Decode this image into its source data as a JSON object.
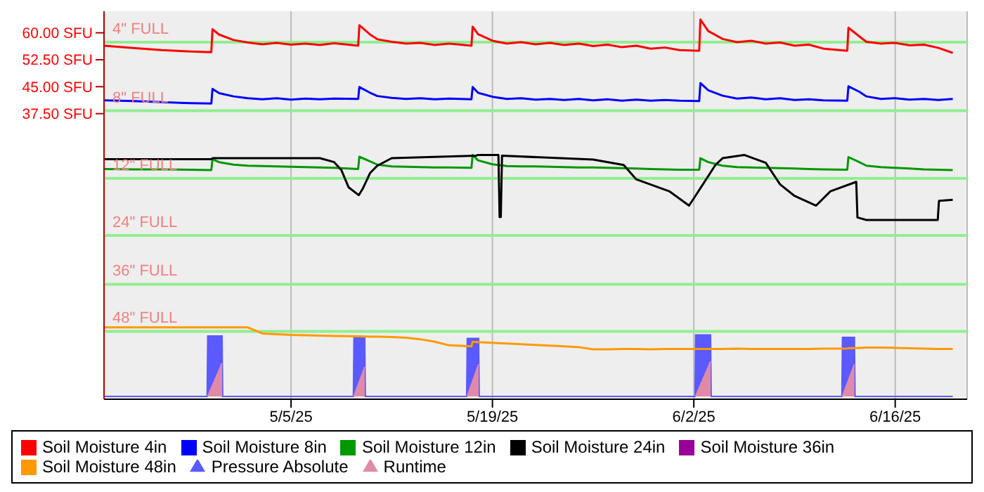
{
  "chart_data": {
    "type": "line",
    "x": [
      "--04-22",
      "--04-24",
      "--04-26",
      "--04-28",
      "--04-29T11:00",
      "--04-29T13:00",
      "--04-30",
      "--05-01",
      "--05-02",
      "--05-03",
      "--05-04",
      "--05-05",
      "--05-06",
      "--05-07",
      "--05-08",
      "--05-09T16:00",
      "--05-09T18:00",
      "--05-10T12:00",
      "--05-11",
      "--05-12",
      "--05-13",
      "--05-14",
      "--05-15",
      "--05-16",
      "--05-17T13:00",
      "--05-17T15:00",
      "--05-18",
      "--05-19",
      "--05-20",
      "--05-21",
      "--05-22",
      "--05-23",
      "--05-24",
      "--05-25",
      "--05-26",
      "--05-27",
      "--05-28",
      "--05-29",
      "--05-30",
      "--05-31",
      "--06-01",
      "--06-02T09:00",
      "--06-02T11:00",
      "--06-03",
      "--06-04",
      "--06-05",
      "--06-06",
      "--06-07",
      "--06-08",
      "--06-09",
      "--06-10",
      "--06-11",
      "--06-12T16:00",
      "--06-12T18:00",
      "--06-13T12:00",
      "--06-14",
      "--06-15",
      "--06-16",
      "--06-17",
      "--06-18",
      "--06-19",
      "--06-20"
    ],
    "series": [
      {
        "name": "Soil Moisture 4in",
        "color": "#ff0000",
        "values": [
          56.4,
          55.8,
          55.2,
          54.8,
          54.6,
          61.0,
          59.5,
          58.0,
          57.3,
          56.8,
          57.2,
          56.7,
          57.0,
          56.6,
          57.1,
          56.4,
          62.1,
          59.5,
          58.2,
          57.5,
          57.0,
          57.2,
          56.6,
          57.0,
          56.4,
          61.7,
          59.6,
          57.8,
          57.0,
          57.4,
          56.8,
          57.2,
          56.6,
          57.0,
          56.3,
          56.7,
          56.0,
          56.4,
          55.6,
          55.9,
          55.2,
          55.0,
          63.7,
          60.5,
          58.3,
          57.4,
          57.8,
          57.0,
          57.3,
          56.4,
          56.7,
          55.6,
          55.0,
          61.4,
          59.0,
          57.5,
          57.0,
          57.2,
          56.5,
          56.7,
          55.8,
          54.4
        ]
      },
      {
        "name": "Soil Moisture 8in",
        "color": "#0000ff",
        "values": [
          41.2,
          41.0,
          40.7,
          40.4,
          40.3,
          44.4,
          43.2,
          42.3,
          41.8,
          41.5,
          41.8,
          41.4,
          41.7,
          41.5,
          41.7,
          41.6,
          44.9,
          43.3,
          42.4,
          41.9,
          41.6,
          41.8,
          41.5,
          41.7,
          41.5,
          44.9,
          43.3,
          42.2,
          41.6,
          41.8,
          41.4,
          41.6,
          41.3,
          41.6,
          41.2,
          41.5,
          41.1,
          41.4,
          41.1,
          41.3,
          41.1,
          41.0,
          46.0,
          44.0,
          42.5,
          41.7,
          42.0,
          41.5,
          41.8,
          41.3,
          41.5,
          41.2,
          41.1,
          45.1,
          43.6,
          42.3,
          41.6,
          41.8,
          41.4,
          41.6,
          41.3,
          41.6
        ]
      },
      {
        "name": "Soil Moisture 12in",
        "color": "#009900",
        "values": [
          22.1,
          22.0,
          22.0,
          21.9,
          21.8,
          24.8,
          24.0,
          23.3,
          23.0,
          22.9,
          22.8,
          22.7,
          22.6,
          22.5,
          22.4,
          22.1,
          25.5,
          24.2,
          23.3,
          22.8,
          22.7,
          22.6,
          22.5,
          22.5,
          22.4,
          26.0,
          24.5,
          23.4,
          22.9,
          22.8,
          22.8,
          22.7,
          22.6,
          22.5,
          22.5,
          22.4,
          22.3,
          22.2,
          22.1,
          22.0,
          21.9,
          21.9,
          25.1,
          24.0,
          23.0,
          22.6,
          22.5,
          22.4,
          22.3,
          22.2,
          22.1,
          22.0,
          21.9,
          25.4,
          24.0,
          23.0,
          22.6,
          22.4,
          22.2,
          22.0,
          21.9,
          21.8
        ]
      },
      {
        "name": "Soil Moisture 24in",
        "color": "#000000",
        "x": [
          "--04-22",
          "--04-29T11:00",
          "--04-29T13:00",
          "--05-07",
          "--05-08",
          "--05-08T12:00",
          "--05-09",
          "--05-09T17:00",
          "--05-10",
          "--05-10T12:00",
          "--05-11",
          "--05-12",
          "--05-17T21:00",
          "--05-18",
          "--05-19T10:00",
          "--05-19T12:00",
          "--05-19T14:00",
          "--05-19T16:00",
          "--05-26",
          "--05-28T03:00",
          "--05-29",
          "--05-31T07:00",
          "--06-01T16:00",
          "--06-02",
          "--06-03T12:00",
          "--06-04",
          "--06-05T12:00",
          "--06-07",
          "--06-08",
          "--06-09",
          "--06-10T12:00",
          "--06-11T12:00",
          "--06-13T07:00",
          "--06-13T09:00",
          "--06-14",
          "--06-18T23:00",
          "--06-19T01:00",
          "--06-20"
        ],
        "values": [
          24.8,
          24.8,
          25.1,
          25.1,
          24.0,
          21.8,
          17.0,
          14.8,
          16.7,
          21.0,
          23.0,
          25.1,
          25.8,
          26.0,
          26.0,
          8.7,
          8.7,
          25.8,
          24.7,
          23.2,
          19.2,
          15.9,
          11.9,
          13.9,
          23.2,
          25.1,
          26.0,
          23.8,
          17.8,
          14.6,
          11.9,
          15.9,
          18.5,
          8.6,
          7.9,
          7.9,
          13.2,
          13.5
        ]
      },
      {
        "name": "Soil Moisture 36in",
        "color": "#990099",
        "values": [
          null,
          null,
          null,
          null,
          null,
          null,
          null,
          null,
          null,
          null,
          null,
          null,
          null,
          null,
          null,
          null,
          null,
          null,
          null,
          null,
          null,
          null,
          null,
          null,
          null,
          null,
          null,
          null,
          null,
          null,
          null,
          null,
          null,
          null,
          null,
          null,
          null,
          null,
          null,
          null,
          null,
          null,
          null,
          null,
          null,
          null,
          null,
          null,
          null,
          null,
          null,
          null,
          null,
          null,
          null,
          null,
          null,
          null,
          null,
          null,
          null,
          null
        ]
      },
      {
        "name": "Soil Moisture 48in",
        "color": "#ff9900",
        "values": [
          -22.0,
          -22.0,
          -22.0,
          -22.0,
          -22.0,
          -22.0,
          -22.0,
          -22.0,
          -22.0,
          -23.7,
          -23.9,
          -24.1,
          -24.2,
          -24.3,
          -24.4,
          -24.5,
          -24.5,
          -24.6,
          -24.6,
          -24.7,
          -24.9,
          -25.3,
          -26.0,
          -27.0,
          -27.3,
          -26.0,
          -26.1,
          -26.3,
          -26.5,
          -26.7,
          -26.9,
          -27.1,
          -27.3,
          -27.5,
          -28.1,
          -28.1,
          -28.0,
          -28.0,
          -28.1,
          -28.0,
          -28.0,
          -28.0,
          -28.0,
          -28.0,
          -28.0,
          -27.9,
          -28.0,
          -28.0,
          -28.0,
          -28.0,
          -28.0,
          -27.9,
          -27.9,
          -27.8,
          -27.7,
          -27.6,
          -27.6,
          -27.7,
          -27.8,
          -27.9,
          -28.0,
          -28.0
        ]
      },
      {
        "name": "Pressure Absolute",
        "type": "area",
        "color": "#5a5aff",
        "x": [
          "--04-22",
          "--04-29T04:00",
          "--04-29T05:00",
          "--04-30T05:00",
          "--04-30T06:00",
          "--05-09T08:00",
          "--05-09T09:00",
          "--05-10T03:00",
          "--05-10T04:00",
          "--05-17T05:00",
          "--05-17T06:00",
          "--05-18T01:00",
          "--05-18T02:00",
          "--06-02T02:00",
          "--06-02T03:00",
          "--06-03T04:00",
          "--06-03T05:00",
          "--06-12T07:00",
          "--06-12T08:00",
          "--06-13T04:00",
          "--06-13T05:00",
          "--06-20"
        ],
        "values": [
          -41.2,
          -41.2,
          -24.4,
          -24.4,
          -41.2,
          -41.2,
          -24.8,
          -24.8,
          -41.2,
          -41.2,
          -25.1,
          -25.1,
          -41.2,
          -41.2,
          -24.1,
          -24.1,
          -41.2,
          -41.2,
          -24.8,
          -24.8,
          -41.2,
          -41.2
        ]
      },
      {
        "name": "Runtime",
        "type": "area",
        "color": "#e08aa8",
        "x": [
          "--04-29T05:00",
          "--04-30T05:00",
          "--04-30T06:00",
          "--05-09T09:00",
          "--05-10T03:00",
          "--05-10T04:00",
          "--05-17T06:00",
          "--05-18T01:00",
          "--05-18T02:00",
          "--06-02T03:00",
          "--06-03T04:00",
          "--06-03T05:00",
          "--06-12T08:00",
          "--06-13T04:00"
        ],
        "values": [
          -41.2,
          -32.0,
          null,
          -41.2,
          -33.0,
          null,
          -41.2,
          -32.3,
          null,
          -41.2,
          -31.5,
          null,
          -41.2,
          -32.3
        ]
      }
    ],
    "xlim": [
      "--04-22",
      "--06-21"
    ],
    "xticks": [
      {
        "value": "--05-05",
        "label": "5/5/25"
      },
      {
        "value": "--05-19",
        "label": "5/19/25"
      },
      {
        "value": "--06-02",
        "label": "6/2/25"
      },
      {
        "value": "--06-16",
        "label": "6/16/25"
      }
    ],
    "ylim": [
      -42,
      66
    ],
    "yticks": [
      {
        "value": 37.5,
        "label": "37.50 SFU"
      },
      {
        "value": 45,
        "label": "45.00 SFU"
      },
      {
        "value": 52.5,
        "label": "52.50 SFU"
      },
      {
        "value": 60,
        "label": "60.00 SFU"
      }
    ],
    "ref_lines": [
      {
        "axis": "y",
        "value": 57.4,
        "label": "4\" FULL",
        "color": "#90ee90"
      },
      {
        "axis": "y",
        "value": 38.3,
        "label": "8\" FULL",
        "color": "#90ee90"
      },
      {
        "axis": "y",
        "value": 19.5,
        "label": "12\" FULL",
        "color": "#90ee90"
      },
      {
        "axis": "y",
        "value": 3.6,
        "label": "24\" FULL",
        "color": "#90ee90"
      },
      {
        "axis": "y",
        "value": -10,
        "label": "36\" FULL",
        "color": "#90ee90"
      },
      {
        "axis": "y",
        "value": -23.1,
        "label": "48\" FULL",
        "color": "#90ee90"
      }
    ],
    "grid": "x",
    "legend": "bottom"
  }
}
